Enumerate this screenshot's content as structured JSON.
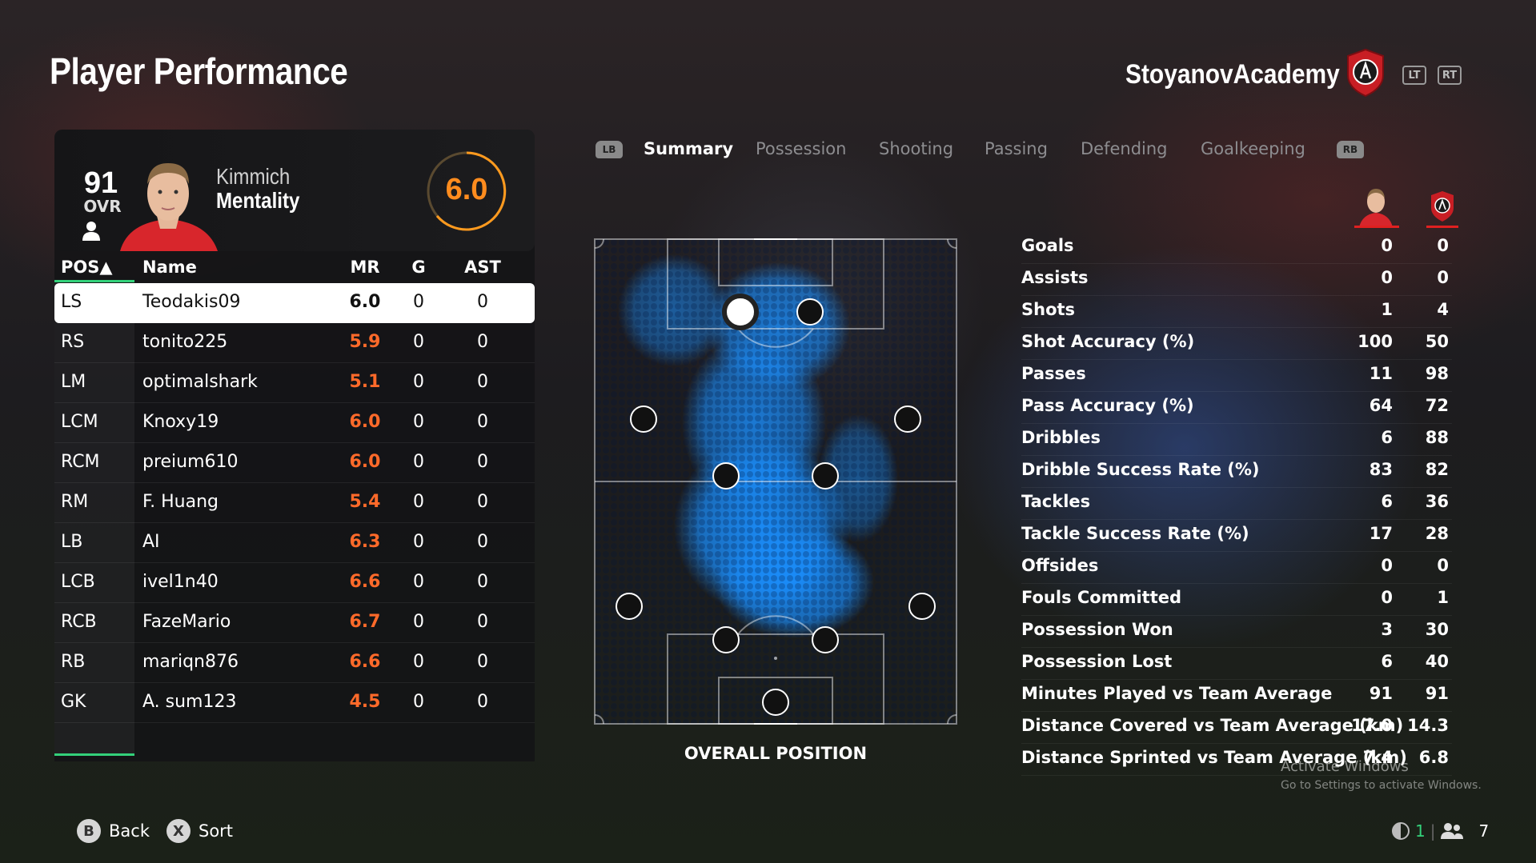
{
  "header": {
    "title": "Player Performance",
    "club_name": "StoyanovAcademy",
    "trigger_left": "LT",
    "trigger_right": "RT"
  },
  "player_card": {
    "ovr_value": "91",
    "ovr_label": "OVR",
    "first_name": "Kimmich",
    "last_name": "Mentality",
    "match_rating": "6.0",
    "rating_color": "#ff8c1e"
  },
  "table": {
    "headers": {
      "pos": "POS▲",
      "name": "Name",
      "mr": "MR",
      "g": "G",
      "ast": "AST"
    },
    "rows": [
      {
        "pos": "LS",
        "name": "Teodakis09",
        "mr": "6.0",
        "g": "0",
        "ast": "0"
      },
      {
        "pos": "RS",
        "name": "tonito225",
        "mr": "5.9",
        "g": "0",
        "ast": "0"
      },
      {
        "pos": "LM",
        "name": "optimalshark",
        "mr": "5.1",
        "g": "0",
        "ast": "0"
      },
      {
        "pos": "LCM",
        "name": "Knoxy19",
        "mr": "6.0",
        "g": "0",
        "ast": "0"
      },
      {
        "pos": "RCM",
        "name": "preium610",
        "mr": "6.0",
        "g": "0",
        "ast": "0"
      },
      {
        "pos": "RM",
        "name": "F. Huang",
        "mr": "5.4",
        "g": "0",
        "ast": "0"
      },
      {
        "pos": "LB",
        "name": "AI",
        "mr": "6.3",
        "g": "0",
        "ast": "0"
      },
      {
        "pos": "LCB",
        "name": "ivel1n40",
        "mr": "6.6",
        "g": "0",
        "ast": "0"
      },
      {
        "pos": "RCB",
        "name": "FazeMario",
        "mr": "6.7",
        "g": "0",
        "ast": "0"
      },
      {
        "pos": "RB",
        "name": "mariqn876",
        "mr": "6.6",
        "g": "0",
        "ast": "0"
      },
      {
        "pos": "GK",
        "name": "A. sum123",
        "mr": "4.5",
        "g": "0",
        "ast": "0"
      }
    ]
  },
  "tabs": {
    "lb": "LB",
    "rb": "RB",
    "items": [
      "Summary",
      "Possession",
      "Shooting",
      "Passing",
      "Defending",
      "Goalkeeping"
    ],
    "active": "Summary"
  },
  "pitch": {
    "label": "OVERALL POSITION",
    "heat_color": "#1a8fff"
  },
  "stats": [
    {
      "label": "Goals",
      "player": "0",
      "team": "0"
    },
    {
      "label": "Assists",
      "player": "0",
      "team": "0"
    },
    {
      "label": "Shots",
      "player": "1",
      "team": "4"
    },
    {
      "label": "Shot Accuracy (%)",
      "player": "100",
      "team": "50"
    },
    {
      "label": "Passes",
      "player": "11",
      "team": "98"
    },
    {
      "label": "Pass Accuracy (%)",
      "player": "64",
      "team": "72"
    },
    {
      "label": "Dribbles",
      "player": "6",
      "team": "88"
    },
    {
      "label": "Dribble Success Rate (%)",
      "player": "83",
      "team": "82"
    },
    {
      "label": "Tackles",
      "player": "6",
      "team": "36"
    },
    {
      "label": "Tackle Success Rate (%)",
      "player": "17",
      "team": "28"
    },
    {
      "label": "Offsides",
      "player": "0",
      "team": "0"
    },
    {
      "label": "Fouls Committed",
      "player": "0",
      "team": "1"
    },
    {
      "label": "Possession Won",
      "player": "3",
      "team": "30"
    },
    {
      "label": "Possession Lost",
      "player": "6",
      "team": "40"
    },
    {
      "label": "Minutes Played vs Team Average",
      "player": "91",
      "team": "91"
    },
    {
      "label": "Distance Covered vs Team Average (km)",
      "player": "17.0",
      "team": "14.3"
    },
    {
      "label": "Distance Sprinted vs Team Average (km)",
      "player": "7.4",
      "team": "6.8"
    }
  ],
  "watermark": {
    "line1": "Activate Windows",
    "line2": "Go to Settings to activate Windows."
  },
  "footer": {
    "back_key": "B",
    "back_label": "Back",
    "sort_key": "X",
    "sort_label": "Sort",
    "party_count": "1",
    "players_count": "7"
  },
  "colors": {
    "accent_green": "#33d17a",
    "rating_orange": "#ff6a2a",
    "club_red": "#e02020"
  }
}
